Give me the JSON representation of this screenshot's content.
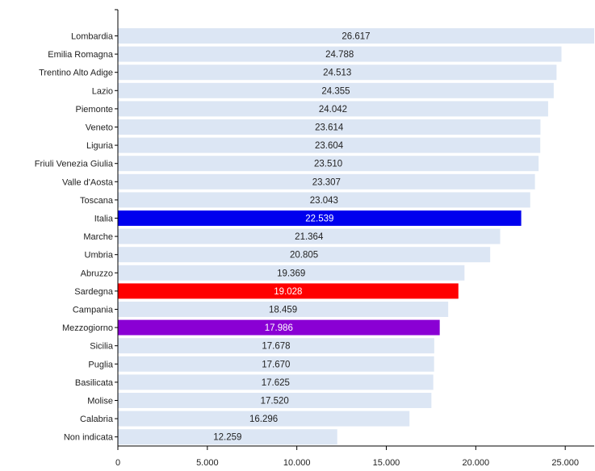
{
  "chart_data": {
    "type": "bar",
    "orientation": "horizontal",
    "categories": [
      "Lombardia",
      "Emilia Romagna",
      "Trentino Alto Adige",
      "Lazio",
      "Piemonte",
      "Veneto",
      "Liguria",
      "Friuli Venezia Giulia",
      "Valle d'Aosta",
      "Toscana",
      "Italia",
      "Marche",
      "Umbria",
      "Abruzzo",
      "Sardegna",
      "Campania",
      "Mezzogiorno",
      "Sicilia",
      "Puglia",
      "Basilicata",
      "Molise",
      "Calabria",
      "Non indicata"
    ],
    "values": [
      26617,
      24788,
      24513,
      24355,
      24042,
      23614,
      23604,
      23510,
      23307,
      23043,
      22539,
      21364,
      20805,
      19369,
      19028,
      18459,
      17986,
      17678,
      17670,
      17625,
      17520,
      16296,
      12259
    ],
    "value_labels": [
      "26.617",
      "24.788",
      "24.513",
      "24.355",
      "24.042",
      "23.614",
      "23.604",
      "23.510",
      "23.307",
      "23.043",
      "22.539",
      "21.364",
      "20.805",
      "19.369",
      "19.028",
      "18.459",
      "17.986",
      "17.678",
      "17.670",
      "17.625",
      "17.520",
      "16.296",
      "12.259"
    ],
    "colors": {
      "default": "#dce6f4",
      "highlights": {
        "Italia": "#0000ee",
        "Sardegna": "#ff0000",
        "Mezzogiorno": "#8a00d4"
      },
      "label_default": "#222222",
      "label_highlight": "#ffffff"
    },
    "xlim": [
      0,
      26617
    ],
    "xticks": [
      0,
      5000,
      10000,
      15000,
      20000,
      25000
    ],
    "xtick_labels": [
      "0",
      "5.000",
      "10.000",
      "15.000",
      "20.000",
      "25.000"
    ],
    "grid": false,
    "legend": "none",
    "title": "",
    "xlabel": "",
    "ylabel": ""
  }
}
